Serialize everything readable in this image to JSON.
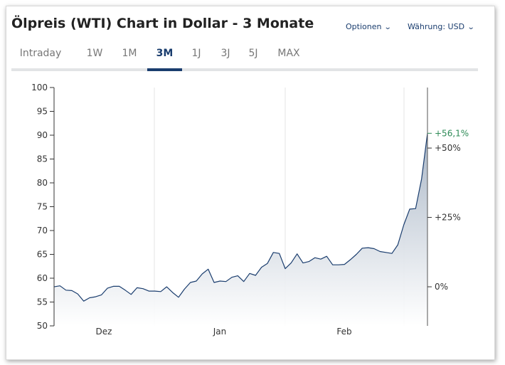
{
  "header": {
    "title": "Ölpreis (WTI) Chart in Dollar - 3 Monate",
    "options_label": "Optionen",
    "currency_label": "Währung: USD"
  },
  "tabs": [
    {
      "label": "Intraday",
      "active": false
    },
    {
      "label": "1W",
      "active": false
    },
    {
      "label": "1M",
      "active": false
    },
    {
      "label": "3M",
      "active": true
    },
    {
      "label": "1J",
      "active": false
    },
    {
      "label": "3J",
      "active": false
    },
    {
      "label": "5J",
      "active": false
    },
    {
      "label": "MAX",
      "active": false
    }
  ],
  "colors": {
    "line": "#1a3d6e",
    "area_top": "#a9b6c6",
    "area_bottom": "#ffffff",
    "gain": "#2e8b57",
    "grid": "#e6e6e6"
  },
  "chart_data": {
    "type": "area",
    "title": "Ölpreis (WTI) Chart in Dollar - 3 Monate",
    "ylim": [
      50,
      100
    ],
    "y_ticks": [
      100,
      95,
      90,
      85,
      80,
      75,
      70,
      65,
      60,
      55,
      50
    ],
    "x_tick_labels": [
      "Dez",
      "Jan",
      "Feb"
    ],
    "right_axis": {
      "labels": [
        "+50%",
        "+25%",
        "0%"
      ],
      "last_change": "+56,1%"
    },
    "series": [
      {
        "values": [
          58.2,
          58.4,
          57.5,
          57.4,
          56.7,
          55.2,
          55.9,
          56.1,
          56.5,
          57.9,
          58.3,
          58.3,
          57.5,
          56.6,
          58.0,
          57.8,
          57.3,
          57.3,
          57.2,
          58.2,
          57.0,
          56.0,
          57.7,
          59.1,
          59.4,
          60.9,
          61.9,
          59.1,
          59.4,
          59.3,
          60.2,
          60.5,
          59.3,
          61.0,
          60.6,
          62.3,
          63.1,
          65.4,
          65.2,
          62.0,
          63.2,
          65.1,
          63.2,
          63.5,
          64.3,
          64.0,
          64.6,
          62.8,
          62.8,
          62.9,
          63.9,
          65.0,
          66.3,
          66.4,
          66.2,
          65.6,
          65.4,
          65.2,
          67.0,
          71.2,
          74.5,
          74.6,
          80.8,
          90.4
        ]
      }
    ]
  }
}
